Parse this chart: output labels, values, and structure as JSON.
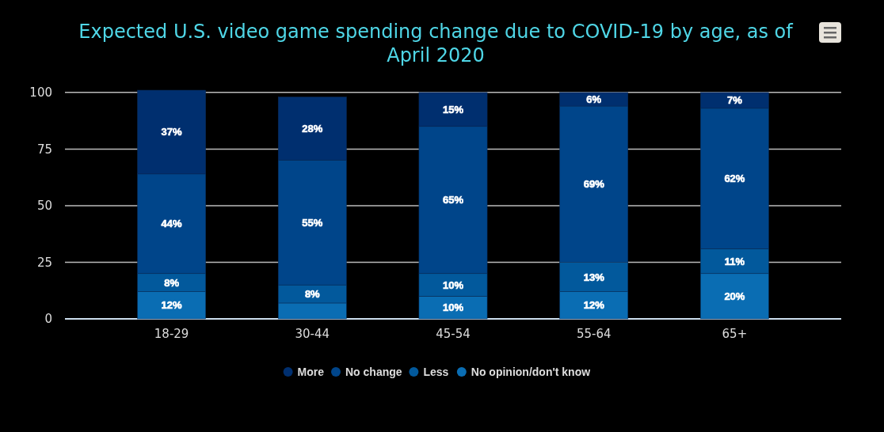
{
  "chart_data": {
    "type": "bar",
    "title": "Expected U.S. video game spending change due to COVID-19 by age, as of April 2020",
    "categories": [
      "18-29",
      "30-44",
      "45-54",
      "55-64",
      "65+"
    ],
    "stacked": true,
    "series": [
      {
        "name": "No opinion/don't know",
        "color": "#0a6db3",
        "values": [
          12,
          7,
          10,
          12,
          20
        ],
        "value_labels": [
          "12%",
          null,
          "10%",
          "12%",
          "20%"
        ]
      },
      {
        "name": "Less",
        "color": "#02599c",
        "values": [
          8,
          8,
          10,
          13,
          11
        ],
        "value_labels": [
          "8%",
          "8%",
          "10%",
          "13%",
          "11%"
        ]
      },
      {
        "name": "No change",
        "color": "#00458a",
        "values": [
          44,
          55,
          65,
          69,
          62
        ],
        "value_labels": [
          "44%",
          "55%",
          "65%",
          "69%",
          "62%"
        ]
      },
      {
        "name": "More",
        "color": "#002f6f",
        "values": [
          37,
          28,
          15,
          6,
          7
        ],
        "value_labels": [
          "37%",
          "28%",
          "15%",
          "6%",
          "7%"
        ]
      }
    ],
    "ylim": [
      0,
      101
    ],
    "yticks": [
      0,
      25,
      50,
      75,
      100
    ],
    "grid": "y",
    "legend": "bottom"
  }
}
